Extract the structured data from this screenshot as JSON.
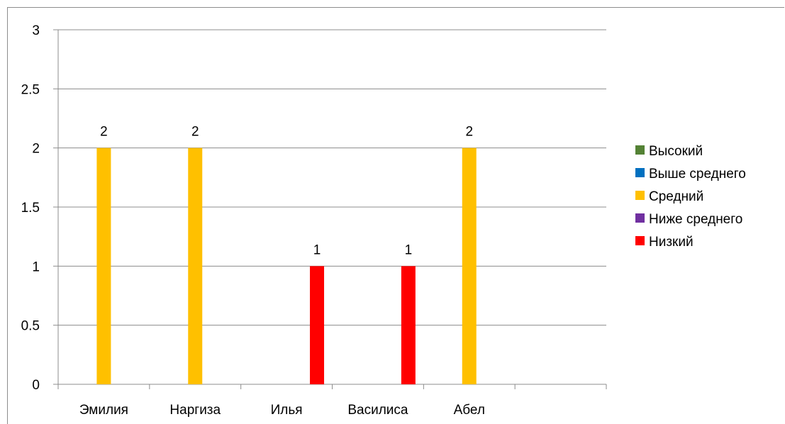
{
  "chart_data": {
    "type": "bar",
    "categories": [
      "Эмилия",
      "Наргиза",
      "Илья",
      "Василиса",
      "Абел",
      ""
    ],
    "series": [
      {
        "name": "Высокий",
        "color": "#548235",
        "values": [
          null,
          null,
          null,
          null,
          null,
          null
        ]
      },
      {
        "name": "Выше среднего",
        "color": "#0070c0",
        "values": [
          null,
          null,
          null,
          null,
          null,
          null
        ]
      },
      {
        "name": "Средний",
        "color": "#ffc000",
        "values": [
          2,
          2,
          null,
          null,
          2,
          null
        ]
      },
      {
        "name": "Ниже среднего",
        "color": "#7030a0",
        "values": [
          null,
          null,
          null,
          null,
          null,
          null
        ]
      },
      {
        "name": "Низкий",
        "color": "#ff0000",
        "values": [
          null,
          null,
          1,
          1,
          null,
          null
        ]
      }
    ],
    "y_ticks": [
      "0",
      "0.5",
      "1",
      "1.5",
      "2",
      "2.5",
      "3"
    ],
    "ylim": [
      0,
      3
    ],
    "grid": true,
    "legend_position": "right",
    "data_labels": true
  }
}
